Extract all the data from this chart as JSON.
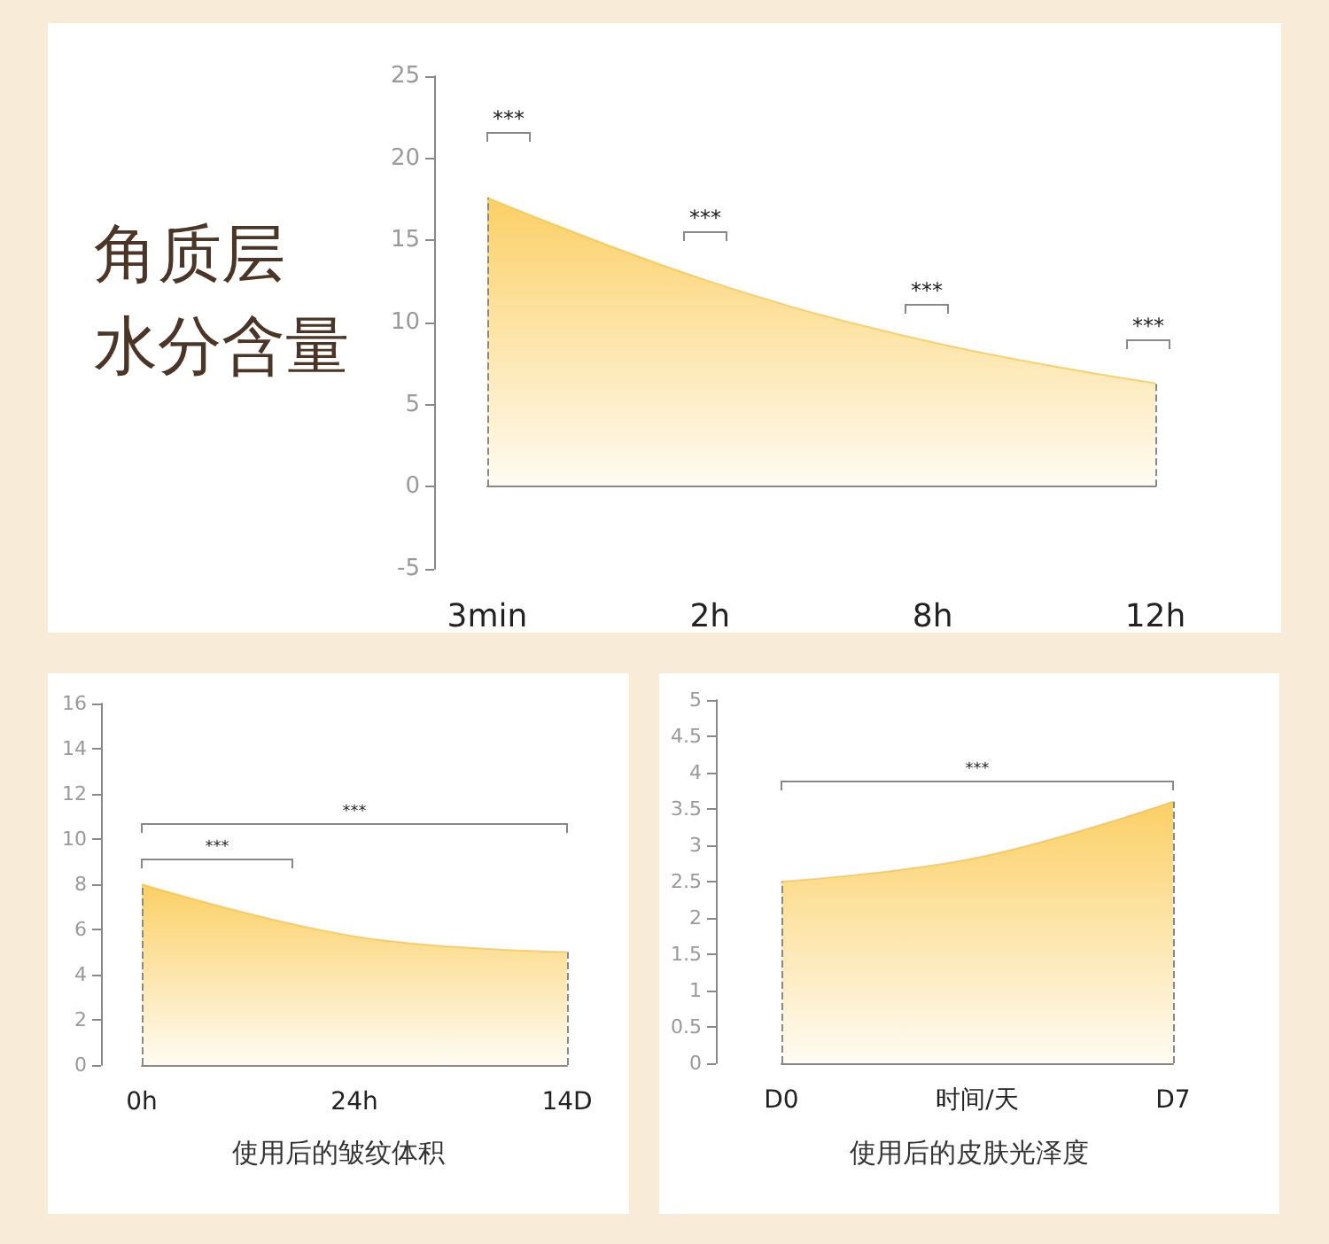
{
  "chart_data": [
    {
      "type": "area",
      "title": "角质层水分含量",
      "categories": [
        "3min",
        "2h",
        "8h",
        "12h"
      ],
      "values": [
        17.6,
        12.5,
        8.8,
        6.3
      ],
      "color": "#f9bb24",
      "ylim": [
        -5,
        25
      ],
      "yticks": [
        -5,
        0,
        5,
        10,
        15,
        20,
        25
      ],
      "marker": "none",
      "ref_lines": [
        {
          "axis": "x",
          "value": "3min",
          "color": "#888888",
          "line_style": "dashed"
        },
        {
          "axis": "x",
          "value": "12h",
          "color": "#888888",
          "line_style": "dashed"
        }
      ],
      "annotations": [
        "***",
        "***",
        "***",
        "***"
      ]
    },
    {
      "type": "area",
      "title": "使用后的皱纹体积",
      "categories": [
        "0h",
        "24h",
        "14D"
      ],
      "values": [
        8.0,
        5.7,
        5.0
      ],
      "color": "#f9bb24",
      "ylim": [
        0,
        16
      ],
      "yticks": [
        0,
        2,
        4,
        6,
        8,
        10,
        12,
        14,
        16
      ],
      "marker": "none",
      "ref_lines": [
        {
          "axis": "x",
          "value": "0h",
          "color": "#888888",
          "line_style": "dashed"
        },
        {
          "axis": "x",
          "value": "14D",
          "color": "#888888",
          "line_style": "dashed"
        }
      ],
      "annotations": [
        "***",
        "***"
      ]
    },
    {
      "type": "area",
      "title": "使用后的皮肤光泽度",
      "xlabel": "时间/天",
      "categories": [
        "D0",
        null,
        "D7"
      ],
      "values": [
        2.5,
        2.83,
        3.6
      ],
      "color": "#f9bb24",
      "ylim": [
        0,
        5
      ],
      "yticks": [
        0,
        0.5,
        1,
        1.5,
        2,
        2.5,
        3,
        3.5,
        4,
        4.5,
        5
      ],
      "marker": "none",
      "ref_lines": [
        {
          "axis": "x",
          "value": "D0",
          "color": "#888888",
          "line_style": "dashed"
        },
        {
          "axis": "x",
          "value": "D7",
          "color": "#888888",
          "line_style": "dashed"
        }
      ],
      "annotations": [
        "***"
      ]
    }
  ]
}
